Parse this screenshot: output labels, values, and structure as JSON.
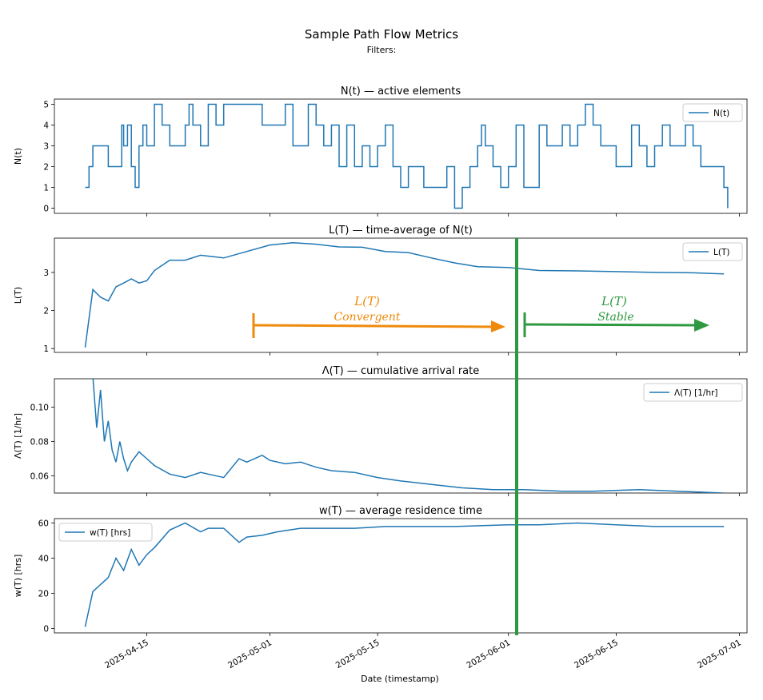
{
  "figure": {
    "title": "Sample Path Flow Metrics",
    "subtitle": "Filters:",
    "xlabel": "Date (timestamp)",
    "x_ticks": [
      "2025-04-15",
      "2025-05-01",
      "2025-05-15",
      "2025-06-01",
      "2025-06-15",
      "2025-07-01"
    ]
  },
  "chart_data": [
    {
      "type": "line",
      "title": "N(t) — active elements",
      "ylabel": "N(t)",
      "legend": "top-right",
      "ylim": [
        -0.25,
        5.25
      ],
      "yticks": [
        0,
        1,
        2,
        3,
        4,
        5
      ],
      "xlim": [
        "2025-04-03",
        "2025-07-02"
      ],
      "step": true,
      "series": [
        {
          "name": "N(t)",
          "x": [
            "2025-04-07",
            "2025-04-07T12",
            "2025-04-08",
            "2025-04-09",
            "2025-04-10",
            "2025-04-11",
            "2025-04-11T18",
            "2025-04-12",
            "2025-04-12T12",
            "2025-04-13",
            "2025-04-13T12",
            "2025-04-14",
            "2025-04-14T12",
            "2025-04-15",
            "2025-04-16",
            "2025-04-16T18",
            "2025-04-17",
            "2025-04-18",
            "2025-04-19",
            "2025-04-20",
            "2025-04-20T12",
            "2025-04-21",
            "2025-04-22",
            "2025-04-23",
            "2025-04-24",
            "2025-04-25",
            "2025-04-26",
            "2025-04-27",
            "2025-04-28",
            "2025-04-29",
            "2025-04-30",
            "2025-05-01",
            "2025-05-02",
            "2025-05-03",
            "2025-05-04",
            "2025-05-05",
            "2025-05-06",
            "2025-05-07",
            "2025-05-08",
            "2025-05-09",
            "2025-05-10",
            "2025-05-11",
            "2025-05-12",
            "2025-05-13",
            "2025-05-14",
            "2025-05-15",
            "2025-05-16",
            "2025-05-17",
            "2025-05-18",
            "2025-05-19",
            "2025-05-20",
            "2025-05-21",
            "2025-05-22",
            "2025-05-23",
            "2025-05-24",
            "2025-05-25",
            "2025-05-26",
            "2025-05-27",
            "2025-05-28",
            "2025-05-28T12",
            "2025-05-29",
            "2025-05-30",
            "2025-05-31",
            "2025-06-01",
            "2025-06-02",
            "2025-06-03",
            "2025-06-04",
            "2025-06-05",
            "2025-06-06",
            "2025-06-07",
            "2025-06-08",
            "2025-06-09",
            "2025-06-10",
            "2025-06-11",
            "2025-06-12",
            "2025-06-13",
            "2025-06-14",
            "2025-06-15",
            "2025-06-16",
            "2025-06-17",
            "2025-06-18",
            "2025-06-19",
            "2025-06-20",
            "2025-06-21",
            "2025-06-22",
            "2025-06-23",
            "2025-06-24",
            "2025-06-25",
            "2025-06-26",
            "2025-06-27",
            "2025-06-28",
            "2025-06-29",
            "2025-06-29T12"
          ],
          "values": [
            1,
            2,
            3,
            3,
            2,
            2,
            4,
            3,
            4,
            2,
            1,
            3,
            4,
            3,
            5,
            5,
            4,
            3,
            3,
            4,
            5,
            4,
            3,
            5,
            4,
            5,
            5,
            5,
            5,
            5,
            4,
            4,
            4,
            5,
            3,
            3,
            5,
            4,
            3,
            4,
            2,
            4,
            2,
            3,
            2,
            3,
            4,
            2,
            1,
            2,
            2,
            1,
            1,
            1,
            2,
            0,
            1,
            2,
            3,
            4,
            3,
            2,
            1,
            2,
            4,
            1,
            1,
            4,
            3,
            3,
            4,
            3,
            4,
            5,
            4,
            3,
            3,
            2,
            2,
            4,
            3,
            2,
            3,
            4,
            3,
            3,
            4,
            3,
            2,
            2,
            2,
            1,
            0
          ]
        }
      ]
    },
    {
      "type": "line",
      "title": "L(T) — time-average of N(t)",
      "ylabel": "L(T)",
      "legend": "top-right",
      "ylim": [
        0.9,
        3.9
      ],
      "yticks": [
        1,
        2,
        3
      ],
      "xlim": [
        "2025-04-03",
        "2025-07-02"
      ],
      "series": [
        {
          "name": "L(T)",
          "x": [
            "2025-04-07",
            "2025-04-08",
            "2025-04-09",
            "2025-04-10",
            "2025-04-11",
            "2025-04-12",
            "2025-04-13",
            "2025-04-14",
            "2025-04-15",
            "2025-04-16",
            "2025-04-18",
            "2025-04-20",
            "2025-04-22",
            "2025-04-25",
            "2025-04-28",
            "2025-05-01",
            "2025-05-04",
            "2025-05-07",
            "2025-05-10",
            "2025-05-13",
            "2025-05-16",
            "2025-05-19",
            "2025-05-22",
            "2025-05-25",
            "2025-05-28",
            "2025-06-01",
            "2025-06-05",
            "2025-06-10",
            "2025-06-15",
            "2025-06-20",
            "2025-06-25",
            "2025-06-29"
          ],
          "values": [
            1.03,
            2.55,
            2.35,
            2.25,
            2.62,
            2.72,
            2.83,
            2.72,
            2.78,
            3.05,
            3.32,
            3.32,
            3.45,
            3.38,
            3.55,
            3.72,
            3.78,
            3.74,
            3.67,
            3.66,
            3.55,
            3.52,
            3.38,
            3.25,
            3.15,
            3.13,
            3.05,
            3.04,
            3.02,
            3.0,
            2.99,
            2.96
          ]
        }
      ]
    },
    {
      "type": "line",
      "title": "Λ(T) — cumulative arrival rate",
      "ylabel": "Λ(T) [1/hr]",
      "legend": "top-right",
      "ylim": [
        0.05,
        0.1165
      ],
      "yticks": [
        0.06,
        0.08,
        0.1
      ],
      "xlim": [
        "2025-04-03",
        "2025-07-02"
      ],
      "series": [
        {
          "name": "Λ(T) [1/hr]",
          "x": [
            "2025-04-08",
            "2025-04-08T12",
            "2025-04-09",
            "2025-04-09T12",
            "2025-04-10",
            "2025-04-10T12",
            "2025-04-11",
            "2025-04-11T12",
            "2025-04-12",
            "2025-04-12T12",
            "2025-04-13",
            "2025-04-14",
            "2025-04-15",
            "2025-04-16",
            "2025-04-18",
            "2025-04-20",
            "2025-04-22",
            "2025-04-23",
            "2025-04-25",
            "2025-04-27",
            "2025-04-28",
            "2025-04-30",
            "2025-05-01",
            "2025-05-03",
            "2025-05-05",
            "2025-05-07",
            "2025-05-09",
            "2025-05-12",
            "2025-05-15",
            "2025-05-18",
            "2025-05-22",
            "2025-05-26",
            "2025-05-30",
            "2025-06-03",
            "2025-06-08",
            "2025-06-12",
            "2025-06-18",
            "2025-06-23",
            "2025-06-29"
          ],
          "values": [
            0.118,
            0.088,
            0.11,
            0.08,
            0.092,
            0.075,
            0.068,
            0.08,
            0.07,
            0.063,
            0.068,
            0.074,
            0.07,
            0.066,
            0.061,
            0.059,
            0.062,
            0.061,
            0.059,
            0.07,
            0.068,
            0.072,
            0.069,
            0.067,
            0.068,
            0.065,
            0.063,
            0.062,
            0.059,
            0.057,
            0.055,
            0.053,
            0.052,
            0.052,
            0.051,
            0.051,
            0.052,
            0.051,
            0.05
          ]
        }
      ]
    },
    {
      "type": "line",
      "title": "w(T) — average residence time",
      "ylabel": "w(T) [hrs]",
      "legend": "top-left",
      "ylim": [
        -2.5,
        62.5
      ],
      "yticks": [
        0,
        20,
        40,
        60
      ],
      "xlim": [
        "2025-04-03",
        "2025-07-02"
      ],
      "series": [
        {
          "name": "w(T) [hrs]",
          "x": [
            "2025-04-07",
            "2025-04-08",
            "2025-04-09",
            "2025-04-10",
            "2025-04-11",
            "2025-04-12",
            "2025-04-13",
            "2025-04-14",
            "2025-04-15",
            "2025-04-16",
            "2025-04-18",
            "2025-04-20",
            "2025-04-22",
            "2025-04-23",
            "2025-04-25",
            "2025-04-27",
            "2025-04-28",
            "2025-04-30",
            "2025-05-02",
            "2025-05-05",
            "2025-05-08",
            "2025-05-12",
            "2025-05-16",
            "2025-05-20",
            "2025-05-25",
            "2025-06-01",
            "2025-06-05",
            "2025-06-10",
            "2025-06-15",
            "2025-06-20",
            "2025-06-25",
            "2025-06-29"
          ],
          "values": [
            1,
            21,
            25,
            29,
            40,
            33,
            45,
            36,
            42,
            46,
            56,
            60,
            55,
            57,
            57,
            49,
            52,
            53,
            55,
            57,
            57,
            57,
            58,
            58,
            58,
            59,
            59,
            60,
            59,
            58,
            58,
            58
          ]
        }
      ]
    }
  ],
  "annotations": {
    "convergent_label_1": "L(T)",
    "convergent_label_2": "Convergent",
    "stable_label_1": "L(T)",
    "stable_label_2": "Stable",
    "orange": "#ef8a0c",
    "green": "#2e9940"
  },
  "colors": {
    "line": "#1f77b4"
  }
}
